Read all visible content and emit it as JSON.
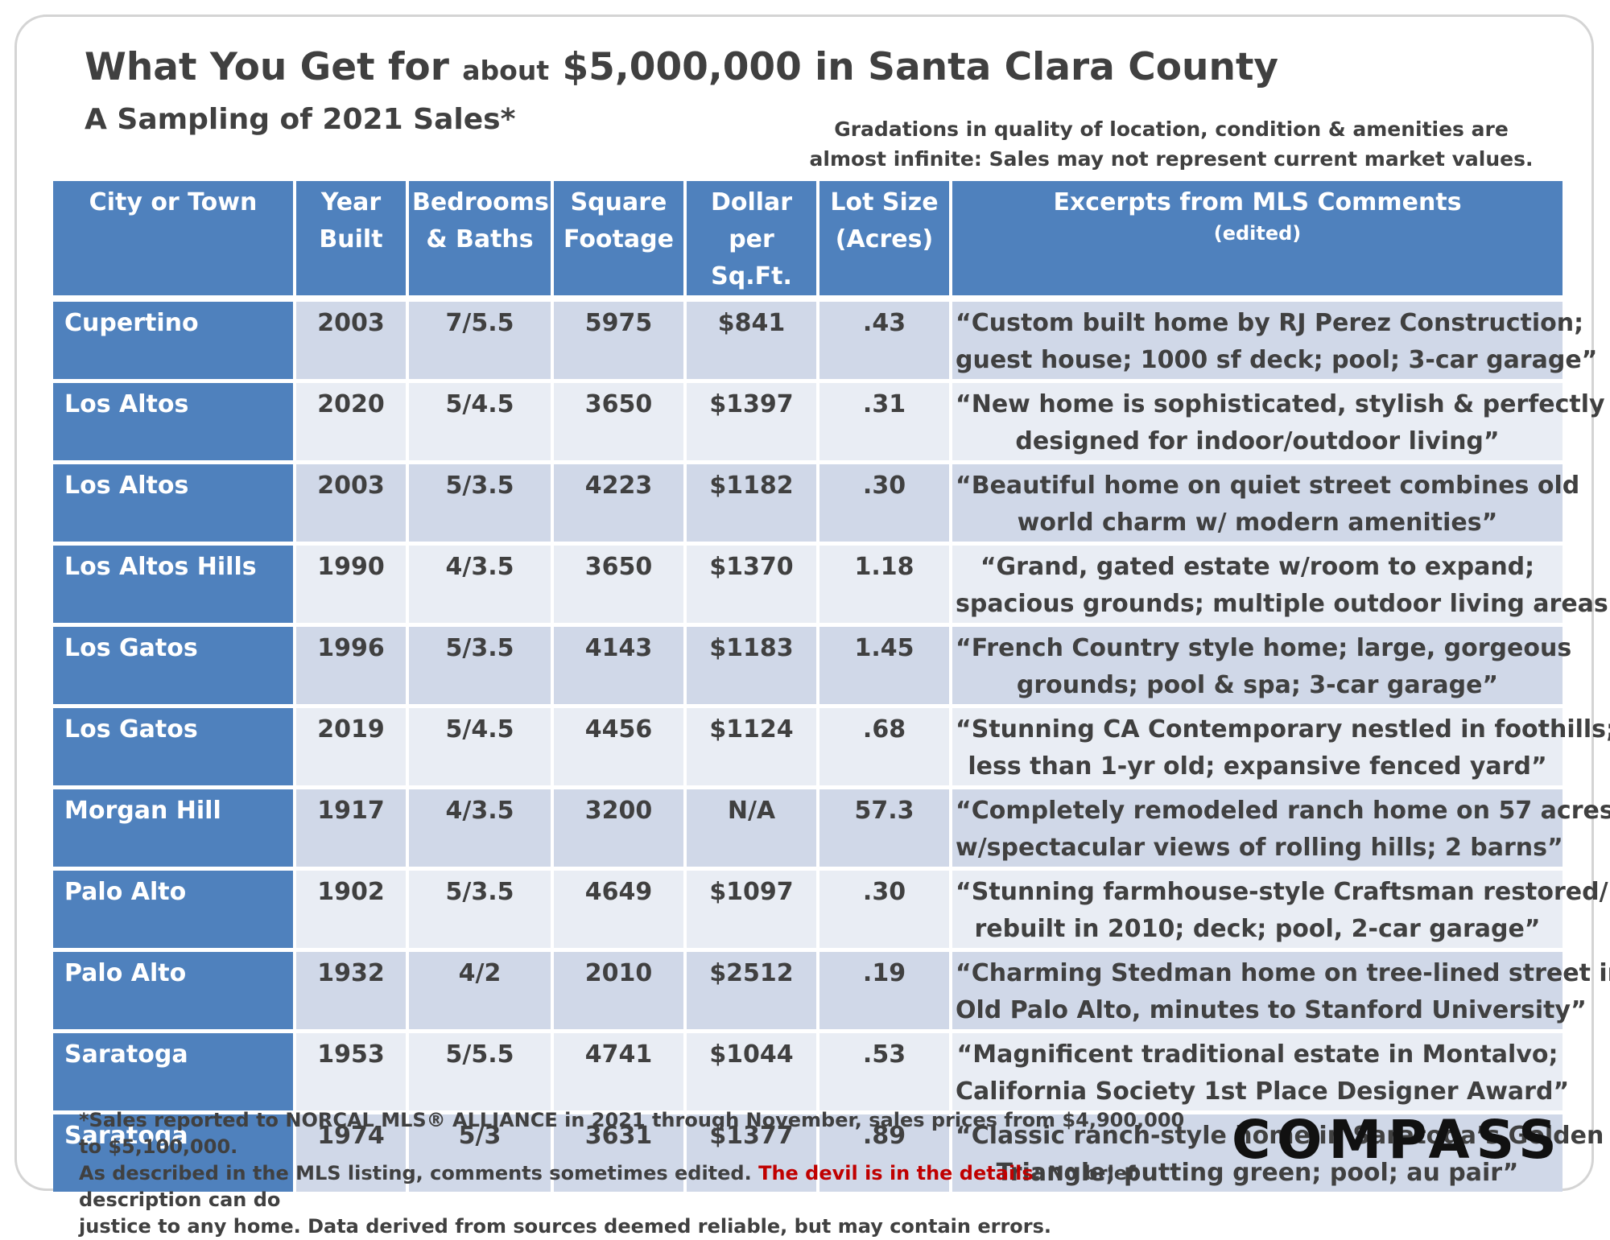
{
  "title": {
    "part1": "What You Get for",
    "part2": "about",
    "part3": "$5,000,000 in Santa Clara County"
  },
  "subtitle": "A Sampling of 2021 Sales*",
  "note": {
    "line1": "Gradations in quality of location, condition & amenities are",
    "line2": "almost infinite: Sales may not represent current market values."
  },
  "table": {
    "headers": {
      "city": [
        "City or Town",
        ""
      ],
      "year": [
        "Year",
        "Built"
      ],
      "beds": [
        "Bedrooms",
        "& Baths"
      ],
      "sqft": [
        "Square",
        "Footage"
      ],
      "dollar": [
        "Dollar",
        "per Sq.Ft."
      ],
      "lot": [
        "Lot Size",
        "(Acres)"
      ],
      "comments": [
        "Excerpts from MLS Comments",
        "(edited)"
      ]
    },
    "rows": [
      {
        "city": "Cupertino",
        "year": "2003",
        "beds": "7/5.5",
        "sqft": "5975",
        "dollar": "$841",
        "lot": ".43",
        "c1": "“Custom built home by RJ Perez Construction;",
        "c2": "guest house; 1000 sf deck; pool; 3-car garage”"
      },
      {
        "city": "Los Altos",
        "year": "2020",
        "beds": "5/4.5",
        "sqft": "3650",
        "dollar": "$1397",
        "lot": ".31",
        "c1": "“New home is sophisticated, stylish & perfectly",
        "c2": "designed for indoor/outdoor living”"
      },
      {
        "city": "Los Altos",
        "year": "2003",
        "beds": "5/3.5",
        "sqft": "4223",
        "dollar": "$1182",
        "lot": ".30",
        "c1": "“Beautiful home on quiet street combines old",
        "c2": "world charm w/ modern amenities”"
      },
      {
        "city": "Los Altos Hills",
        "year": "1990",
        "beds": "4/3.5",
        "sqft": "3650",
        "dollar": "$1370",
        "lot": "1.18",
        "c1": "“Grand, gated estate w/room to expand;",
        "c2": "spacious grounds; multiple outdoor living areas”"
      },
      {
        "city": "Los Gatos",
        "year": "1996",
        "beds": "5/3.5",
        "sqft": "4143",
        "dollar": "$1183",
        "lot": "1.45",
        "c1": "“French Country style home; large, gorgeous",
        "c2": "grounds; pool & spa; 3-car garage”"
      },
      {
        "city": "Los Gatos",
        "year": "2019",
        "beds": "5/4.5",
        "sqft": "4456",
        "dollar": "$1124",
        "lot": ".68",
        "c1": "“Stunning CA Contemporary nestled in foothills;",
        "c2": "less than 1-yr old; expansive fenced yard”"
      },
      {
        "city": "Morgan Hill",
        "year": "1917",
        "beds": "4/3.5",
        "sqft": "3200",
        "dollar": "N/A",
        "lot": "57.3",
        "c1": "“Completely remodeled ranch home on 57 acres",
        "c2": "w/spectacular views of rolling hills; 2 barns”"
      },
      {
        "city": "Palo Alto",
        "year": "1902",
        "beds": "5/3.5",
        "sqft": "4649",
        "dollar": "$1097",
        "lot": ".30",
        "c1": "“Stunning farmhouse-style Craftsman  restored/",
        "c2": "rebuilt in 2010; deck; pool, 2-car garage”"
      },
      {
        "city": "Palo Alto",
        "year": "1932",
        "beds": "4/2",
        "sqft": "2010",
        "dollar": "$2512",
        "lot": ".19",
        "c1": "“Charming Stedman home on tree-lined street in",
        "c2": "Old Palo Alto, minutes to Stanford University”"
      },
      {
        "city": "Saratoga",
        "year": "1953",
        "beds": "5/5.5",
        "sqft": "4741",
        "dollar": "$1044",
        "lot": ".53",
        "c1": "“Magnificent traditional estate in Montalvo;",
        "c2": "California Society 1st Place Designer Award”"
      },
      {
        "city": "Saratoga",
        "year": "1974",
        "beds": "5/3",
        "sqft": "3631",
        "dollar": "$1377",
        "lot": ".89",
        "c1": "“Classic ranch-style home in Saratoga’s Golden",
        "c2": "Triangle; putting green; pool; au pair”"
      }
    ]
  },
  "footer": {
    "line1": "*Sales reported to NORCAL MLS® ALLIANCE in 2021 through November, sales prices from $4,900,000 to $5,100,000.",
    "line2a": "As described in the MLS listing, comments sometimes edited. ",
    "line2red": "The devil is in the details",
    "line2b": ": No brief description can do",
    "line3": "justice to any home. Data derived from sources deemed reliable, but may contain errors."
  },
  "logo": "COMPASS"
}
